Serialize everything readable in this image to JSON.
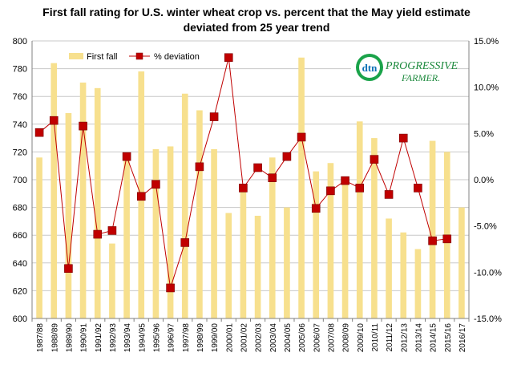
{
  "chart_data": {
    "type": "bar+line",
    "title_lines": [
      "First fall rating for U.S. winter wheat crop vs. percent that the May yield estimate",
      "deviated from 25 year trend"
    ],
    "categories": [
      "1987/88",
      "1988/89",
      "1989/90",
      "1990/91",
      "1991/92",
      "1992/93",
      "1993/94",
      "1994/95",
      "1995/96",
      "1996/97",
      "1997/98",
      "1998/99",
      "1999/00",
      "2000/01",
      "2001/02",
      "2002/03",
      "2003/04",
      "2004/05",
      "2005/06",
      "2006/07",
      "2007/08",
      "2008/09",
      "2009/10",
      "2010/11",
      "2011/12",
      "2012/13",
      "2013/14",
      "2014/15",
      "2015/16",
      "2016/17"
    ],
    "series": [
      {
        "name": "First fall",
        "type": "bar",
        "axis": "left",
        "color": "#f7e08e",
        "values": [
          716,
          784,
          748,
          770,
          766,
          654,
          716,
          778,
          722,
          724,
          762,
          750,
          722,
          676,
          696,
          674,
          716,
          680,
          788,
          706,
          712,
          700,
          742,
          730,
          672,
          662,
          650,
          728,
          720,
          680
        ]
      },
      {
        "name": "% deviation",
        "type": "line",
        "axis": "right",
        "color": "#c00000",
        "values": [
          5.1,
          6.4,
          -9.6,
          5.8,
          -5.9,
          -5.5,
          2.5,
          -1.8,
          -0.5,
          -11.7,
          -6.8,
          1.4,
          6.8,
          13.2,
          -0.9,
          1.3,
          0.2,
          2.5,
          4.6,
          -3.1,
          -1.2,
          -0.1,
          -0.9,
          2.2,
          -1.6,
          4.5,
          -0.9,
          -6.6,
          -6.4,
          null
        ]
      }
    ],
    "y_left": {
      "min": 600,
      "max": 800,
      "step": 20
    },
    "y_right": {
      "min": -15,
      "max": 15,
      "step": 5
    },
    "legend_position": "top-left",
    "grid": "horizontal"
  },
  "logo": {
    "mark": "dtn",
    "name_line1": "PROGRESSIVE",
    "name_line2": "FARMER."
  }
}
